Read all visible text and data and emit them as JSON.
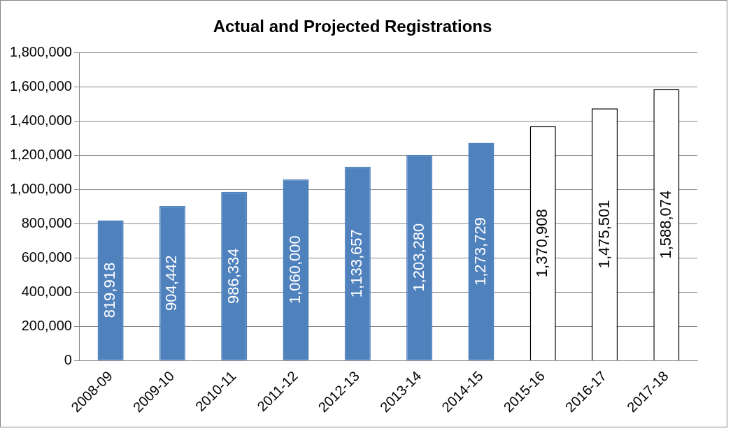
{
  "chart_data": {
    "type": "bar",
    "title": "Actual and Projected Registrations",
    "categories": [
      "2008-09",
      "2009-10",
      "2010-11",
      "2011-12",
      "2012-13",
      "2013-14",
      "2014-15",
      "2015-16",
      "2016-17",
      "2017-18"
    ],
    "values": [
      819918,
      904442,
      986334,
      1060000,
      1133657,
      1203280,
      1273729,
      1370908,
      1475501,
      1588074
    ],
    "colors": [
      "#4f81bd",
      "#4f81bd",
      "#4f81bd",
      "#4f81bd",
      "#4f81bd",
      "#4f81bd",
      "#4f81bd",
      "#ffffff",
      "#ffffff",
      "#ffffff"
    ],
    "ylim": [
      0,
      1800000
    ],
    "yticks": [
      0,
      {
        "value": 200000,
        "label": "200,000"
      },
      {
        "value": 400000,
        "label": "400,000"
      },
      {
        "value": 600000,
        "label": "600,000"
      },
      {
        "value": 800000,
        "label": "800,000"
      },
      {
        "value": 1000000,
        "label": "1,000,000"
      },
      {
        "value": 1200000,
        "label": "1,200,000"
      },
      {
        "value": 1400000,
        "label": "1,400,000"
      },
      {
        "value": 1600000,
        "label": "1,600,000"
      },
      {
        "value": 1800000,
        "label": "1,800,000"
      }
    ],
    "value_labels": [
      "819,918",
      "904,442",
      "986,334",
      "1,060,000",
      "1,133,657",
      "1,203,280",
      "1,273,729",
      "1,370,908",
      "1,475,501",
      "1,588,074"
    ],
    "grid": "y",
    "legend": false
  }
}
